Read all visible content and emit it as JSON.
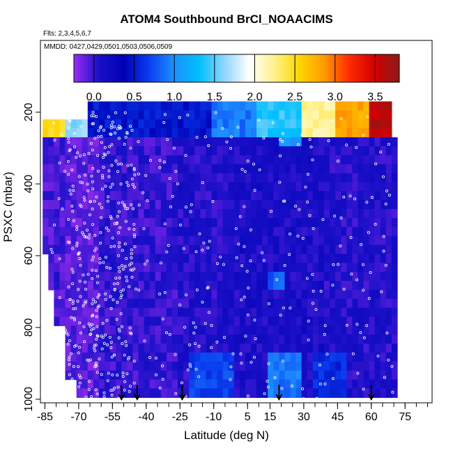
{
  "chart_data": {
    "type": "heatmap",
    "title": "ATOM4 Southbound BrCl_NOAACIMS",
    "flights_text": "Flts: 2,3,4,5,6,7",
    "mmdd_text": "MMDD: 0427,0429,0501,0503,0506,0509",
    "xlabel": "Latitude (deg N)",
    "ylabel": "PSXC (mbar)",
    "x_ticks": [
      -85,
      -70,
      -55,
      -40,
      -25,
      -10,
      5,
      15,
      30,
      45,
      60,
      75
    ],
    "x_tick_labels": [
      "-85",
      "-70",
      "-55",
      "-40",
      "-25",
      "-10",
      "5",
      "15",
      "30",
      "45",
      "60",
      "75"
    ],
    "x_minor_step": 5,
    "xlim": [
      -87,
      87
    ],
    "y_ticks": [
      200,
      400,
      600,
      800,
      1000
    ],
    "y_tick_labels": [
      "200",
      "400",
      "600",
      "800",
      "1000"
    ],
    "ylim": [
      1010,
      0
    ],
    "colorbar": {
      "ticks": [
        0.0,
        0.5,
        1.0,
        1.5,
        2.0,
        2.5,
        3.0,
        3.5
      ],
      "tick_labels": [
        "0.0",
        "0.5",
        "1.0",
        "1.5",
        "2.0",
        "2.5",
        "3.0",
        "3.5"
      ],
      "range": [
        -0.25,
        3.8
      ],
      "colors": [
        "#9a2cf0",
        "#1a10c8",
        "#0000b4",
        "#0a3cf0",
        "#1e90ff",
        "#00bfff",
        "#8fd4ff",
        "#ffffff",
        "#fff28c",
        "#ffd700",
        "#ff9a00",
        "#ff2a00",
        "#d20000",
        "#8b1a1a"
      ]
    },
    "grid": false,
    "field": {
      "description_values": "approximate BrCl values by latitude band and pressure",
      "bands": [
        {
          "x": [
            -85,
            -75
          ],
          "p": [
            265,
            1000
          ],
          "value": -0.05
        },
        {
          "x": [
            -75,
            -60
          ],
          "p": [
            265,
            1000
          ],
          "value": -0.1
        },
        {
          "x": [
            -60,
            -45
          ],
          "p": [
            265,
            1000
          ],
          "value": 0.0
        },
        {
          "x": [
            -45,
            -25
          ],
          "p": [
            265,
            1000
          ],
          "value": 0.0
        },
        {
          "x": [
            -25,
            -5
          ],
          "p": [
            265,
            1000
          ],
          "value": 0.05
        },
        {
          "x": [
            -5,
            15
          ],
          "p": [
            265,
            1000
          ],
          "value": 0.1
        },
        {
          "x": [
            15,
            40
          ],
          "p": [
            265,
            1000
          ],
          "value": 0.1
        },
        {
          "x": [
            40,
            72
          ],
          "p": [
            265,
            1000
          ],
          "value": 0.05
        }
      ],
      "top_layer": [
        {
          "x": [
            -85,
            -77
          ],
          "p": [
            220,
            265
          ],
          "value": 2.5
        },
        {
          "x": [
            -77,
            -65
          ],
          "p": [
            220,
            265
          ],
          "value": 1.6
        },
        {
          "x": [
            -65,
            -50
          ],
          "p": [
            170,
            265
          ],
          "value": 0.5
        },
        {
          "x": [
            -50,
            -10
          ],
          "p": [
            170,
            265
          ],
          "value": 0.5
        },
        {
          "x": [
            -10,
            10
          ],
          "p": [
            170,
            265
          ],
          "value": 0.9
        },
        {
          "x": [
            10,
            30
          ],
          "p": [
            170,
            265
          ],
          "value": 1.4
        },
        {
          "x": [
            30,
            45
          ],
          "p": [
            170,
            265
          ],
          "value": 2.2
        },
        {
          "x": [
            45,
            60
          ],
          "p": [
            170,
            265
          ],
          "value": 2.8
        },
        {
          "x": [
            60,
            70
          ],
          "p": [
            170,
            265
          ],
          "value": 3.6
        }
      ],
      "high_spots": [
        {
          "x": [
            15,
            30
          ],
          "p": [
            880,
            1000
          ],
          "value": 0.9
        },
        {
          "x": [
            -20,
            0
          ],
          "p": [
            880,
            1000
          ],
          "value": 0.7
        },
        {
          "x": [
            35,
            50
          ],
          "p": [
            880,
            1000
          ],
          "value": 0.6
        },
        {
          "x": [
            15,
            22
          ],
          "p": [
            640,
            700
          ],
          "value": 0.8
        },
        {
          "x": [
            20,
            30
          ],
          "p": [
            270,
            300
          ],
          "value": 1.0
        }
      ]
    },
    "arrow_latitudes": [
      -51,
      -44,
      -24,
      19,
      60
    ]
  }
}
